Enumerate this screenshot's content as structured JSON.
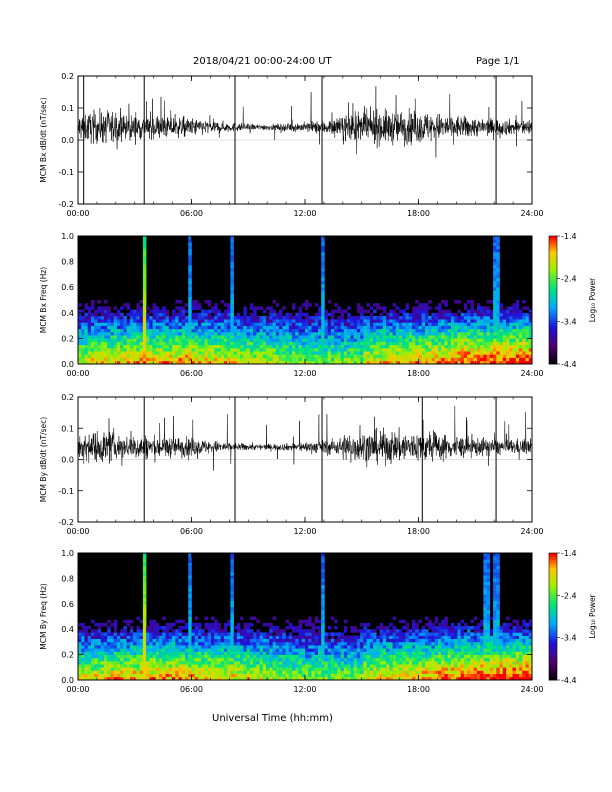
{
  "header": {
    "title": "2018/04/21  00:00-24:00 UT",
    "page": "Page 1/1"
  },
  "footer": {
    "xlabel": "Universal Time (hh:mm)"
  },
  "colorbar": {
    "label": "Log₁₀ Power",
    "ticks": [
      "-1.4",
      "-2.4",
      "-3.4",
      "-4.4"
    ],
    "range": [
      -4.4,
      -1.4
    ]
  },
  "colors": {
    "background": "#ffffff",
    "line": "#000000",
    "spectrogram_bg": "#000000"
  },
  "chart_data": [
    {
      "type": "line",
      "id": "bx-dbdt",
      "ylabel": "MCM Bx dB/dt (nT/sec)",
      "ylim": [
        -0.2,
        0.2
      ],
      "yticks": [
        "0.2",
        "0.1",
        "0.0",
        "-0.1",
        "-0.2"
      ],
      "xlim": [
        0,
        24
      ],
      "xticks": [
        "00:00",
        "06:00",
        "12:00",
        "18:00",
        "24:00"
      ],
      "baseline": 0.04,
      "spikes_hours": [
        0.3,
        3.5,
        8.3,
        12.9,
        22.1
      ]
    },
    {
      "type": "heatmap",
      "id": "bx-spectrogram",
      "ylabel": "MCM Bx Freq (Hz)",
      "ylim": [
        0.0,
        1.0
      ],
      "yticks": [
        "1.0",
        "0.8",
        "0.6",
        "0.4",
        "0.2",
        "0.0"
      ],
      "xlim": [
        0,
        24
      ],
      "xticks": [
        "00:00",
        "06:00",
        "12:00",
        "18:00",
        "24:00"
      ],
      "colorscale": "log10 power",
      "zlim": [
        -4.4,
        -1.4
      ],
      "events_hours": [
        3.5,
        5.9,
        8.1,
        12.9,
        22.1
      ]
    },
    {
      "type": "line",
      "id": "by-dbdt",
      "ylabel": "MCM By dB/dt (nT/sec)",
      "ylim": [
        -0.2,
        0.2
      ],
      "yticks": [
        "0.2",
        "0.1",
        "0.0",
        "-0.1",
        "-0.2"
      ],
      "xlim": [
        0,
        24
      ],
      "xticks": [
        "00:00",
        "06:00",
        "12:00",
        "18:00",
        "24:00"
      ],
      "baseline": 0.04,
      "spikes_hours": [
        3.5,
        8.3,
        12.9,
        18.2,
        22.1
      ]
    },
    {
      "type": "heatmap",
      "id": "by-spectrogram",
      "ylabel": "MCM By Freq (Hz)",
      "ylim": [
        0.0,
        1.0
      ],
      "yticks": [
        "1.0",
        "0.8",
        "0.6",
        "0.4",
        "0.2",
        "0.0"
      ],
      "xlim": [
        0,
        24
      ],
      "xticks": [
        "00:00",
        "06:00",
        "12:00",
        "18:00",
        "24:00"
      ],
      "colorscale": "log10 power",
      "zlim": [
        -4.4,
        -1.4
      ],
      "events_hours": [
        3.5,
        5.9,
        8.1,
        12.9,
        21.6,
        22.1
      ]
    }
  ]
}
